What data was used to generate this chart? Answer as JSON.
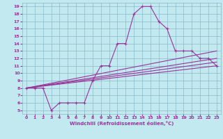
{
  "xlabel": "Windchill (Refroidissement éolien,°C)",
  "bg_color": "#c2e8f0",
  "grid_color": "#8ab8c8",
  "line_color": "#993399",
  "xlim": [
    -0.5,
    23.5
  ],
  "ylim": [
    4.5,
    19.5
  ],
  "xticks": [
    0,
    1,
    2,
    3,
    4,
    5,
    6,
    7,
    8,
    9,
    10,
    11,
    12,
    13,
    14,
    15,
    16,
    17,
    18,
    19,
    20,
    21,
    22,
    23
  ],
  "yticks": [
    5,
    6,
    7,
    8,
    9,
    10,
    11,
    12,
    13,
    14,
    15,
    16,
    17,
    18,
    19
  ],
  "line_main": [
    [
      0,
      8
    ],
    [
      1,
      8
    ],
    [
      2,
      8
    ],
    [
      3,
      5
    ],
    [
      4,
      6
    ],
    [
      5,
      6
    ],
    [
      6,
      6
    ],
    [
      7,
      6
    ],
    [
      8,
      9
    ],
    [
      9,
      11
    ],
    [
      10,
      11
    ],
    [
      11,
      14
    ],
    [
      12,
      14
    ],
    [
      13,
      18
    ],
    [
      14,
      19
    ],
    [
      15,
      19
    ],
    [
      16,
      17
    ],
    [
      17,
      16
    ],
    [
      18,
      13
    ],
    [
      19,
      13
    ],
    [
      20,
      13
    ],
    [
      21,
      12
    ],
    [
      22,
      12
    ],
    [
      23,
      11
    ]
  ],
  "line_band1": [
    [
      0,
      8
    ],
    [
      23,
      13
    ]
  ],
  "line_band2": [
    [
      0,
      8
    ],
    [
      23,
      12
    ]
  ],
  "line_band3": [
    [
      0,
      8
    ],
    [
      23,
      11.5
    ]
  ],
  "line_band4": [
    [
      0,
      8
    ],
    [
      23,
      11
    ]
  ]
}
